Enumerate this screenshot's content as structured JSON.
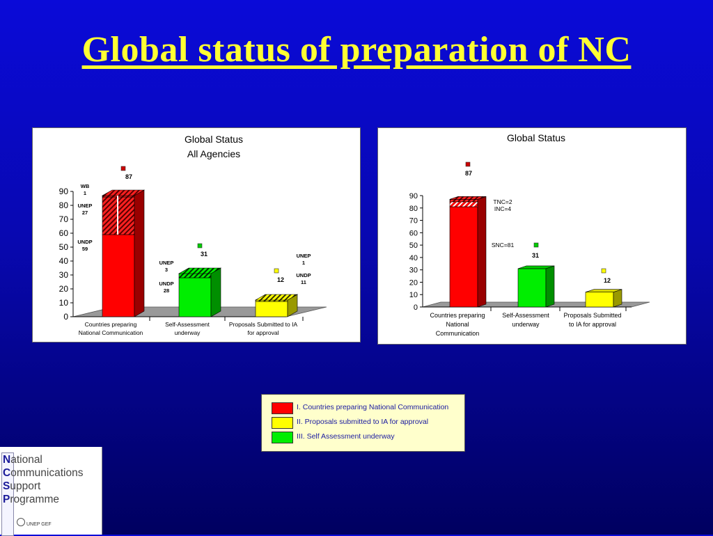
{
  "slide": {
    "title": "Global status of preparation of NC"
  },
  "colors": {
    "background": "#0a0ad8",
    "title": "#ffff33",
    "red": "#ff0000",
    "green": "#00ee00",
    "yellow": "#ffff00",
    "legend_bg": "#ffffcc"
  },
  "chart_data": [
    {
      "type": "bar",
      "stacked": true,
      "three_d": true,
      "title": "Global Status",
      "subtitle": "All Agencies",
      "categories": [
        "Countries preparing National Communication",
        "Self-Assessment underway",
        "Proposals Submitted to IA for approval"
      ],
      "category_lines": [
        [
          "Countries preparing",
          "National Communication"
        ],
        [
          "Self-Assessment",
          "underway"
        ],
        [
          "Proposals Submitted to IA",
          "for approval"
        ]
      ],
      "ylim": [
        0,
        90
      ],
      "yticks": [
        0,
        10,
        20,
        30,
        40,
        50,
        60,
        70,
        80,
        90
      ],
      "totals": [
        87,
        31,
        12
      ],
      "bars": [
        {
          "total": 87,
          "color": "#ff0000",
          "marker_color": "#cc0000",
          "segments": [
            {
              "agency": "UNDP",
              "value": 59,
              "label": "UNDP\n59",
              "pattern": "solid"
            },
            {
              "agency": "UNEP",
              "value": 27,
              "label": "UNEP\n27",
              "pattern": "hatch"
            },
            {
              "agency": "WB",
              "value": 1,
              "label": "WB\n1",
              "pattern": "hatch"
            }
          ]
        },
        {
          "total": 31,
          "color": "#00ee00",
          "marker_color": "#00cc00",
          "segments": [
            {
              "agency": "UNDP",
              "value": 28,
              "label": "UNDP\n28",
              "pattern": "solid"
            },
            {
              "agency": "UNEP",
              "value": 3,
              "label": "UNEP\n3",
              "pattern": "hatch"
            }
          ]
        },
        {
          "total": 12,
          "color": "#ffff00",
          "marker_color": "#ffff00",
          "segments": [
            {
              "agency": "UNDP",
              "value": 11,
              "label": "UNDP\n11",
              "pattern": "solid"
            },
            {
              "agency": "UNEP",
              "value": 1,
              "label": "UNEP\n1",
              "pattern": "hatch"
            }
          ]
        }
      ]
    },
    {
      "type": "bar",
      "stacked": true,
      "three_d": true,
      "title": "Global Status",
      "categories": [
        "Countries preparing National Communication",
        "Self-Assessment underway",
        "Proposals Submitted to IA for approval"
      ],
      "category_lines": [
        [
          "Countries preparing",
          "National",
          "Communication"
        ],
        [
          "Self-Assessment",
          "underway"
        ],
        [
          "Proposals Submitted",
          "to IA for approval"
        ]
      ],
      "ylim": [
        0,
        90
      ],
      "yticks": [
        0,
        10,
        20,
        30,
        40,
        50,
        60,
        70,
        80,
        90
      ],
      "totals": [
        87,
        31,
        12
      ],
      "annotations": [
        "TNC=2",
        "INC=4",
        "SNC=81"
      ],
      "bars": [
        {
          "total": 87,
          "color": "#ff0000",
          "marker_color": "#cc0000",
          "segments": [
            {
              "name": "SNC",
              "value": 81,
              "pattern": "solid"
            },
            {
              "name": "INC",
              "value": 4,
              "pattern": "hatch-white"
            },
            {
              "name": "TNC",
              "value": 2,
              "pattern": "hatch"
            }
          ]
        },
        {
          "total": 31,
          "color": "#00ee00",
          "marker_color": "#00cc00",
          "segments": [
            {
              "value": 31,
              "pattern": "solid"
            }
          ]
        },
        {
          "total": 12,
          "color": "#ffff00",
          "marker_color": "#ffff00",
          "segments": [
            {
              "value": 12,
              "pattern": "solid"
            }
          ]
        }
      ]
    }
  ],
  "legend": {
    "items": [
      {
        "label": "I. Countries preparing National Communication",
        "color": "#ff0000"
      },
      {
        "label": "II. Proposals submitted to IA for approval",
        "color": "#ffff00"
      },
      {
        "label": "III. Self Assessment underway",
        "color": "#00ee00"
      }
    ]
  },
  "logo": {
    "lines": [
      {
        "initial": "N",
        "rest": "ational"
      },
      {
        "initial": "C",
        "rest": "ommunications"
      },
      {
        "initial": "S",
        "rest": "upport"
      },
      {
        "initial": "P",
        "rest": "rogramme"
      }
    ],
    "footer": "UNEP  GEF"
  }
}
